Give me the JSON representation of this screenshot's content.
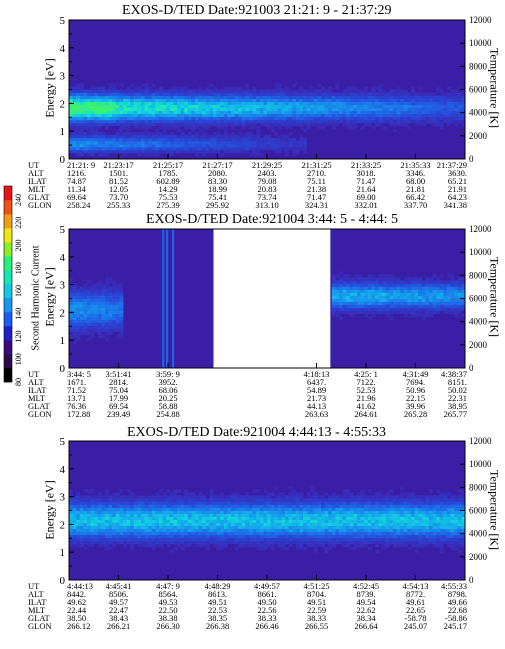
{
  "colorbar": {
    "label": "Second Harmonic Current",
    "ticks": [
      "240",
      "220",
      "200",
      "180",
      "160",
      "140",
      "120",
      "100",
      "80"
    ],
    "colors": [
      "#000000",
      "#2a0a4a",
      "#3a0a80",
      "#2420c8",
      "#1c5cf0",
      "#1496f0",
      "#10c8e6",
      "#14e6b4",
      "#28f078",
      "#8cf028",
      "#f0e614",
      "#f0a014",
      "#f05014",
      "#e61414"
    ]
  },
  "chart_data": [
    {
      "type": "heatmap",
      "title": "EXOS-D/TED  Date:921003  21:21: 9 - 21:37:29",
      "ylabel": "Energy [eV]",
      "y2label": "Temperature [K]",
      "ylim": [
        0,
        5
      ],
      "y2lim": [
        0,
        12000
      ],
      "yticks": [
        "0",
        "1",
        "2",
        "3",
        "4",
        "5"
      ],
      "y2ticks": [
        "0",
        "2000",
        "4000",
        "6000",
        "8000",
        "10000",
        "12000"
      ],
      "gap": null,
      "bands": [
        {
          "center": 1.85,
          "width": 0.55,
          "intensity": 0.85,
          "fade_to": 0.25,
          "from": 0.0,
          "to": 1.0,
          "peak": [
            0.0,
            0.12
          ]
        },
        {
          "center": 0.55,
          "width": 0.35,
          "intensity": 0.45,
          "fade_to": 0.1,
          "from": 0.0,
          "to": 0.6,
          "peak": null
        }
      ],
      "table": {
        "labels": [
          "UT",
          "ALT",
          "ILAT",
          "MLT",
          "GLAT",
          "GLON"
        ],
        "columns": [
          [
            "21:21: 9",
            "1216.",
            "74.87",
            "11.34",
            "69.64",
            "258.24"
          ],
          [
            "21:23:17",
            "1501.",
            "81.52",
            "12.05",
            "73.70",
            "255.33"
          ],
          [
            "21:25:17",
            "1785.",
            "602.89",
            "14.29",
            "75.53",
            "275.39"
          ],
          [
            "21:27:17",
            "2080.",
            "83.30",
            "18.99",
            "75.41",
            "295.92"
          ],
          [
            "21:29:25",
            "2403.",
            "79.08",
            "20.83",
            "73.74",
            "313.10"
          ],
          [
            "21:31:25",
            "2710.",
            "75.11",
            "21.38",
            "71.47",
            "324.31"
          ],
          [
            "21:33:25",
            "3018.",
            "71.47",
            "21.64",
            "69.00",
            "332.01"
          ],
          [
            "21:35:33",
            "3346.",
            "68.00",
            "21.81",
            "66.42",
            "337.70"
          ],
          [
            "21:37:29",
            "3630.",
            "65.21",
            "21.91",
            "64.23",
            "341.38"
          ]
        ]
      }
    },
    {
      "type": "heatmap",
      "title": "EXOS-D/TED   Date:921004  3:44: 5 - 4:44: 5",
      "ylabel": "Energy [eV]",
      "y2label": "Temperature [K]",
      "ylim": [
        0,
        5
      ],
      "y2lim": [
        0,
        12000
      ],
      "yticks": [
        "0",
        "1",
        "2",
        "3",
        "4",
        "5"
      ],
      "y2ticks": [
        "0",
        "2000",
        "4000",
        "6000",
        "8000",
        "10000",
        "12000"
      ],
      "gap": [
        0.365,
        0.66
      ],
      "bands": [
        {
          "center": 2.1,
          "width": 0.8,
          "intensity": 0.45,
          "fade_to": 0.35,
          "from": 0.0,
          "to": 0.14,
          "peak": null
        },
        {
          "center": 2.6,
          "width": 0.55,
          "intensity": 0.55,
          "fade_to": 0.45,
          "from": 0.66,
          "to": 1.0,
          "peak": null
        }
      ],
      "table": {
        "labels": [
          "UT",
          "ALT",
          "ILAT",
          "MLT",
          "GLAT",
          "GLON"
        ],
        "columns": [
          [
            "3:44: 5",
            "1671.",
            "71.52",
            "13.71",
            "76.36",
            "172.88"
          ],
          [
            "3:51:41",
            "2814.",
            "75.04",
            "17.99",
            "69.54",
            "239.49"
          ],
          [
            "3:59: 9",
            "3952.",
            "68.06",
            "20.25",
            "58.88",
            "254.88"
          ],
          [
            "",
            "",
            "",
            "",
            "",
            ""
          ],
          [
            "",
            "",
            "",
            "",
            "",
            ""
          ],
          [
            "4:18:13",
            "6437.",
            "54.89",
            "21.73",
            "44.13",
            "263.63"
          ],
          [
            "4:25: 1",
            "7122.",
            "52.53",
            "21.96",
            "41.62",
            "264.61"
          ],
          [
            "4:31:49",
            "7694.",
            "50.96",
            "22.15",
            "39.96",
            "265.28"
          ],
          [
            "4:38:37",
            "8151.",
            "50.02",
            "22.31",
            "38.95",
            "265.77"
          ]
        ]
      }
    },
    {
      "type": "heatmap",
      "title": "EXOS-D/TED   Date:921004  4:44:13 - 4:55:33",
      "ylabel": "Energy [eV]",
      "y2label": "Temperature [K]",
      "ylim": [
        0,
        5
      ],
      "y2lim": [
        0,
        12000
      ],
      "yticks": [
        "0",
        "1",
        "2",
        "3",
        "4",
        "5"
      ],
      "y2ticks": [
        "0",
        "2000",
        "4000",
        "6000",
        "8000",
        "10000",
        "12000"
      ],
      "gap": null,
      "bands": [
        {
          "center": 2.15,
          "width": 0.75,
          "intensity": 0.6,
          "fade_to": 0.6,
          "from": 0.0,
          "to": 1.0,
          "peak": null
        }
      ],
      "table": {
        "labels": [
          "UT",
          "ALT",
          "ILAT",
          "MLT",
          "GLAT",
          "GLON"
        ],
        "columns": [
          [
            "4:44:13",
            "8442.",
            "49.62",
            "22.44",
            "38.50",
            "266.12"
          ],
          [
            "4:45:41",
            "8506.",
            "49.57",
            "22.47",
            "38.43",
            "266.21"
          ],
          [
            "4:47: 9",
            "8564.",
            "49.53",
            "22.50",
            "38.38",
            "266.30"
          ],
          [
            "4:48:29",
            "8613.",
            "49.51",
            "22.53",
            "38.35",
            "266.38"
          ],
          [
            "4:49:57",
            "8661.",
            "49.50",
            "22.56",
            "38.33",
            "266.46"
          ],
          [
            "4:51:25",
            "8704.",
            "49.51",
            "22.59",
            "38.33",
            "266.55"
          ],
          [
            "4:52:45",
            "8739.",
            "49.54",
            "22.62",
            "38.34",
            "266.64"
          ],
          [
            "4:54:13",
            "8772.",
            "49.61",
            "22.65",
            "-58.78",
            "245.07"
          ],
          [
            "4:55:33",
            "8798.",
            "49.66",
            "22.68",
            "-58.86",
            "245.17"
          ]
        ]
      }
    }
  ]
}
